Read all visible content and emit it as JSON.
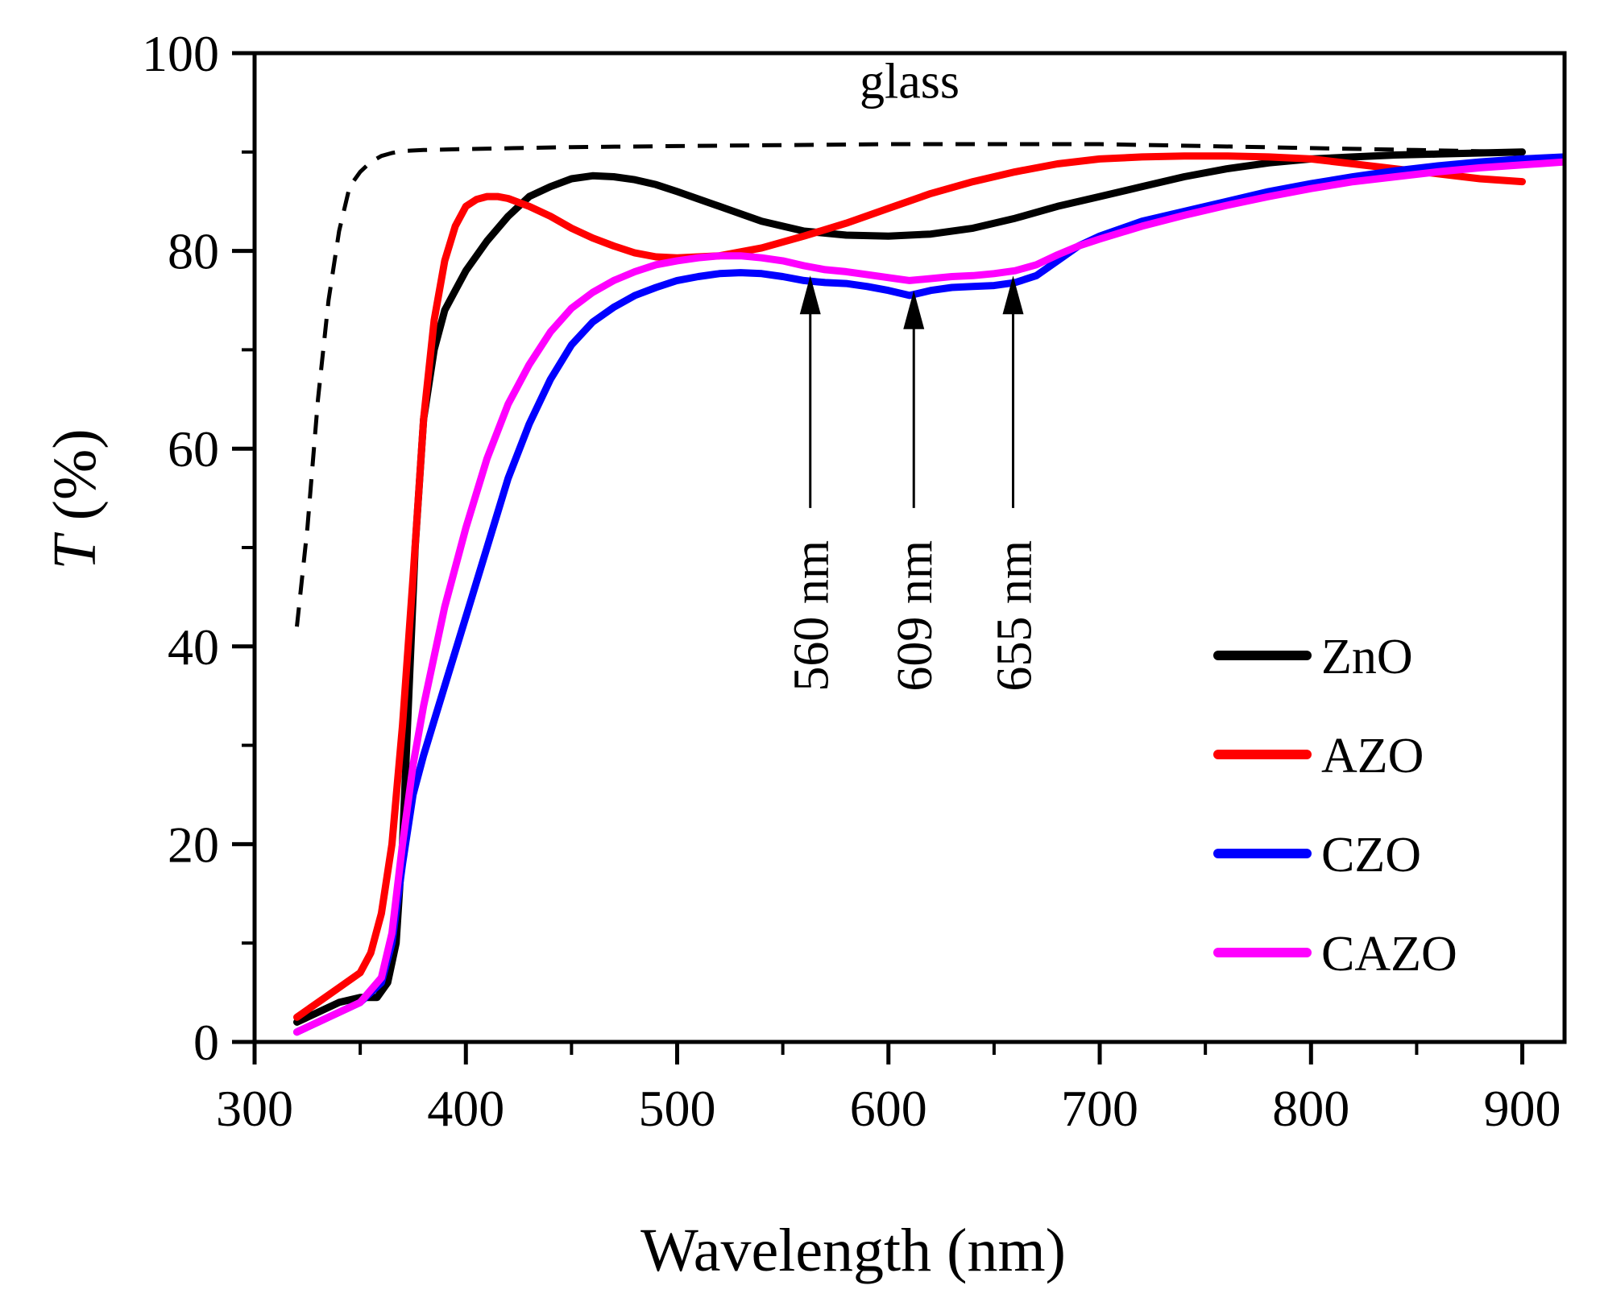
{
  "chart_data": {
    "type": "line",
    "title": "",
    "xlabel": "Wavelength (nm)",
    "ylabel_italic": "T",
    "ylabel_rest": " (%)",
    "xlim": [
      300,
      920
    ],
    "ylim": [
      0,
      100
    ],
    "x_ticks": [
      300,
      400,
      500,
      600,
      700,
      800,
      900
    ],
    "y_ticks": [
      0,
      20,
      40,
      60,
      80,
      100
    ],
    "x_minor_step": 50,
    "y_minor_step": 10,
    "grid": false,
    "legend_position": "bottom-right",
    "series": [
      {
        "name": "glass",
        "legend": false,
        "color": "#000000",
        "dashed": true,
        "line_width": 5,
        "x": [
          320,
          325,
          330,
          335,
          340,
          345,
          350,
          355,
          360,
          365,
          370,
          380,
          400,
          450,
          500,
          550,
          600,
          650,
          700,
          750,
          800,
          850,
          900
        ],
        "y": [
          42,
          52,
          65,
          75,
          82,
          86.5,
          88,
          89,
          89.6,
          89.9,
          90.1,
          90.2,
          90.3,
          90.5,
          90.6,
          90.7,
          90.8,
          90.8,
          90.8,
          90.6,
          90.4,
          90.2,
          90.0
        ]
      },
      {
        "name": "ZnO",
        "legend": true,
        "color": "#000000",
        "dashed": false,
        "line_width": 9,
        "x": [
          320,
          330,
          340,
          350,
          358,
          363,
          367,
          370,
          373,
          376,
          380,
          385,
          390,
          395,
          400,
          410,
          420,
          430,
          440,
          450,
          460,
          470,
          480,
          490,
          500,
          520,
          540,
          560,
          580,
          600,
          620,
          640,
          660,
          680,
          700,
          720,
          740,
          760,
          780,
          800,
          820,
          840,
          860,
          880,
          900
        ],
        "y": [
          2,
          3,
          4,
          4.5,
          4.5,
          6,
          10,
          20,
          35,
          50,
          63,
          70,
          74,
          76,
          78,
          81,
          83.5,
          85.5,
          86.5,
          87.3,
          87.6,
          87.5,
          87.2,
          86.7,
          86,
          84.5,
          83,
          82,
          81.6,
          81.5,
          81.7,
          82.3,
          83.3,
          84.5,
          85.5,
          86.5,
          87.5,
          88.3,
          88.9,
          89.3,
          89.5,
          89.7,
          89.8,
          89.9,
          90
        ]
      },
      {
        "name": "AZO",
        "legend": true,
        "color": "#ff0000",
        "dashed": false,
        "line_width": 9,
        "x": [
          320,
          330,
          340,
          350,
          355,
          360,
          365,
          370,
          375,
          380,
          385,
          390,
          395,
          400,
          405,
          410,
          415,
          420,
          430,
          440,
          450,
          460,
          470,
          480,
          490,
          500,
          520,
          540,
          560,
          580,
          600,
          620,
          640,
          660,
          680,
          700,
          720,
          740,
          760,
          780,
          800,
          820,
          840,
          860,
          880,
          900
        ],
        "y": [
          2.5,
          4,
          5.5,
          7,
          9,
          13,
          20,
          32,
          47,
          63,
          73,
          79,
          82.5,
          84.5,
          85.2,
          85.5,
          85.5,
          85.3,
          84.5,
          83.5,
          82.3,
          81.3,
          80.5,
          79.8,
          79.4,
          79.3,
          79.5,
          80.3,
          81.5,
          82.8,
          84.3,
          85.8,
          87,
          88,
          88.8,
          89.3,
          89.5,
          89.6,
          89.6,
          89.5,
          89.3,
          88.8,
          88.3,
          87.8,
          87.3,
          87
        ]
      },
      {
        "name": "CZO",
        "legend": true,
        "color": "#0000ff",
        "dashed": false,
        "line_width": 9,
        "x": [
          320,
          330,
          340,
          350,
          360,
          365,
          370,
          375,
          380,
          390,
          400,
          410,
          420,
          430,
          440,
          450,
          460,
          470,
          480,
          490,
          500,
          510,
          520,
          530,
          540,
          550,
          560,
          570,
          580,
          590,
          600,
          610,
          620,
          630,
          640,
          650,
          660,
          670,
          680,
          690,
          700,
          720,
          740,
          760,
          780,
          800,
          820,
          840,
          860,
          880,
          900,
          920
        ],
        "y": [
          1,
          2,
          3,
          4,
          6,
          10,
          18,
          25,
          29,
          36,
          43,
          50,
          57,
          62.5,
          67,
          70.5,
          72.8,
          74.3,
          75.5,
          76.3,
          77,
          77.4,
          77.7,
          77.8,
          77.7,
          77.4,
          77,
          76.8,
          76.7,
          76.4,
          76,
          75.5,
          76,
          76.3,
          76.4,
          76.5,
          76.8,
          77.5,
          79,
          80.5,
          81.5,
          83,
          84,
          85,
          86,
          86.8,
          87.5,
          88.1,
          88.6,
          89,
          89.3,
          89.5
        ]
      },
      {
        "name": "CAZO",
        "legend": true,
        "color": "#ff00ff",
        "dashed": false,
        "line_width": 9,
        "x": [
          320,
          330,
          340,
          350,
          360,
          365,
          370,
          375,
          380,
          390,
          400,
          410,
          420,
          430,
          440,
          450,
          460,
          470,
          480,
          490,
          500,
          510,
          520,
          530,
          540,
          550,
          560,
          570,
          580,
          590,
          600,
          610,
          620,
          630,
          640,
          650,
          660,
          670,
          680,
          690,
          700,
          720,
          740,
          760,
          780,
          800,
          820,
          840,
          860,
          880,
          900,
          920
        ],
        "y": [
          1,
          2,
          3,
          4,
          6.5,
          11,
          20,
          28,
          34,
          44,
          52,
          59,
          64.5,
          68.5,
          71.8,
          74.2,
          75.8,
          77,
          77.9,
          78.6,
          79,
          79.3,
          79.5,
          79.5,
          79.3,
          79,
          78.5,
          78.1,
          77.9,
          77.6,
          77.3,
          77,
          77.2,
          77.4,
          77.5,
          77.7,
          78,
          78.6,
          79.6,
          80.5,
          81.2,
          82.5,
          83.6,
          84.6,
          85.5,
          86.3,
          87,
          87.5,
          88,
          88.4,
          88.7,
          89
        ]
      }
    ],
    "annotations": [
      {
        "text": "glass",
        "x": 610,
        "y": 95.5
      },
      {
        "text": "560 nm",
        "arrow_x": 563,
        "arrow_tip_y": 77.5,
        "arrow_tail_y": 54
      },
      {
        "text": "609 nm",
        "arrow_x": 612,
        "arrow_tip_y": 76,
        "arrow_tail_y": 54
      },
      {
        "text": "655 nm",
        "arrow_x": 659,
        "arrow_tip_y": 77.5,
        "arrow_tail_y": 54
      }
    ]
  }
}
